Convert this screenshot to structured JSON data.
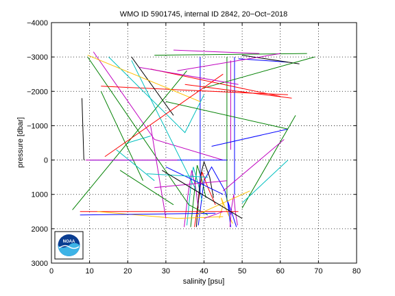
{
  "chart_data": {
    "type": "line",
    "title": "WMO ID 5901745, internal ID 2842, 20−Oct−2018",
    "xlabel": "salinity [psu]",
    "ylabel": "pressure [dbar]",
    "xlim": [
      0,
      80
    ],
    "ylim": [
      -4000,
      3000
    ],
    "y_inverted": true,
    "grid": true,
    "x_ticks": [
      0,
      10,
      20,
      30,
      40,
      50,
      60,
      70,
      80
    ],
    "y_ticks": [
      -4000,
      -3000,
      -2000,
      -1000,
      0,
      1000,
      2000,
      3000
    ],
    "x_tick_labels": [
      "0",
      "10",
      "20",
      "30",
      "40",
      "50",
      "60",
      "70",
      "80"
    ],
    "y_tick_labels": [
      "−4000",
      "−3000",
      "−2000",
      "−1000",
      "0",
      "1000",
      "2000",
      "3000"
    ],
    "series": [
      {
        "color": "#0000ff",
        "points": [
          [
            38.5,
            1900
          ],
          [
            40,
            600
          ],
          [
            42,
            200
          ],
          [
            45.5,
            900
          ],
          [
            47,
            1600
          ]
        ]
      },
      {
        "color": "#ff0000",
        "points": [
          [
            37.5,
            1950
          ],
          [
            38.8,
            1000
          ],
          [
            39.5,
            350
          ],
          [
            41,
            800
          ],
          [
            43,
            1300
          ]
        ]
      },
      {
        "color": "#008000",
        "points": [
          [
            36.5,
            1950
          ],
          [
            37.5,
            900
          ],
          [
            38.2,
            150
          ],
          [
            39.5,
            600
          ],
          [
            40.5,
            1100
          ]
        ]
      },
      {
        "color": "#00bfbf",
        "points": [
          [
            35.5,
            1900
          ],
          [
            36.5,
            800
          ],
          [
            37.2,
            200
          ],
          [
            38.5,
            700
          ],
          [
            39.5,
            1200
          ]
        ]
      },
      {
        "color": "#bf00bf",
        "points": [
          [
            34.8,
            1950
          ],
          [
            35.8,
            1000
          ],
          [
            36.8,
            300
          ],
          [
            37.8,
            800
          ],
          [
            38.5,
            1400
          ]
        ]
      },
      {
        "color": "#000000",
        "points": [
          [
            38,
            1950
          ],
          [
            39,
            500
          ],
          [
            40,
            50
          ],
          [
            41.5,
            500
          ],
          [
            42.5,
            1100
          ]
        ]
      },
      {
        "color": "#ffbf00",
        "points": [
          [
            44,
            1700
          ],
          [
            45,
            1300
          ],
          [
            44.5,
            1100
          ],
          [
            46,
            1500
          ],
          [
            47.5,
            1850
          ]
        ]
      },
      {
        "color": "#0000ff",
        "points": [
          [
            47,
            1950
          ],
          [
            46.5,
            1500
          ],
          [
            46.2,
            1200
          ],
          [
            47.5,
            1600
          ],
          [
            48.5,
            1950
          ]
        ]
      },
      {
        "color": "#bf00bf",
        "points": [
          [
            46.8,
            1950
          ],
          [
            47.2,
            1400
          ],
          [
            47.8,
            1000
          ],
          [
            48.2,
            1500
          ],
          [
            48.8,
            1900
          ]
        ]
      },
      {
        "color": "#0000ff",
        "points": [
          [
            39,
            -3000
          ],
          [
            39,
            1000
          ]
        ]
      },
      {
        "color": "#008000",
        "points": [
          [
            46,
            -3000
          ],
          [
            46,
            1200
          ]
        ]
      },
      {
        "color": "#0000ff",
        "points": [
          [
            48,
            -3000
          ],
          [
            48,
            1000
          ]
        ]
      },
      {
        "color": "#bf00bf",
        "points": [
          [
            47,
            -2900
          ],
          [
            47,
            -300
          ]
        ]
      },
      {
        "color": "#008000",
        "points": [
          [
            9.5,
            -3000
          ],
          [
            36,
            1300
          ],
          [
            41,
            1600
          ]
        ]
      },
      {
        "color": "#bf00bf",
        "points": [
          [
            11,
            -3150
          ],
          [
            27,
            -600
          ],
          [
            45,
            0
          ]
        ]
      },
      {
        "color": "#ff0000",
        "points": [
          [
            26,
            -2650
          ],
          [
            60,
            -1850
          ]
        ]
      },
      {
        "color": "#ff0000",
        "points": [
          [
            13,
            -2150
          ],
          [
            62,
            -1900
          ]
        ]
      },
      {
        "color": "#000000",
        "points": [
          [
            21,
            -3000
          ],
          [
            32,
            -1300
          ]
        ]
      },
      {
        "color": "#008000",
        "points": [
          [
            5.5,
            1450
          ],
          [
            35.5,
            -2600
          ]
        ]
      },
      {
        "color": "#ff0000",
        "points": [
          [
            7.5,
            1500
          ],
          [
            49,
            1500
          ]
        ]
      },
      {
        "color": "#ffbf00",
        "points": [
          [
            12,
            1500
          ],
          [
            33,
            1700
          ],
          [
            45,
            1650
          ]
        ]
      },
      {
        "color": "#0000ff",
        "points": [
          [
            7.5,
            1600
          ],
          [
            43,
            1550
          ]
        ]
      },
      {
        "color": "#00bfbf",
        "points": [
          [
            15,
            -3000
          ],
          [
            35,
            -800
          ],
          [
            40,
            -1900
          ]
        ]
      },
      {
        "color": "#008000",
        "points": [
          [
            27,
            -3050
          ],
          [
            67,
            -3100
          ]
        ]
      },
      {
        "color": "#bf00bf",
        "points": [
          [
            32,
            -3200
          ],
          [
            54.5,
            -3100
          ]
        ]
      },
      {
        "color": "#0000ff",
        "points": [
          [
            49,
            -2950
          ],
          [
            62,
            -2850
          ]
        ]
      },
      {
        "color": "#000000",
        "points": [
          [
            50,
            -3050
          ],
          [
            65,
            -2800
          ]
        ]
      },
      {
        "color": "#008000",
        "points": [
          [
            40,
            -2100
          ],
          [
            69,
            -3000
          ]
        ]
      },
      {
        "color": "#bf00bf",
        "points": [
          [
            33,
            -2600
          ],
          [
            60,
            -3100
          ]
        ]
      },
      {
        "color": "#008000",
        "points": [
          [
            30,
            -1700
          ],
          [
            62,
            -900
          ]
        ]
      },
      {
        "color": "#0000ff",
        "points": [
          [
            42,
            -400
          ],
          [
            62,
            -900
          ]
        ]
      },
      {
        "color": "#008000",
        "points": [
          [
            50,
            1400
          ],
          [
            64,
            -1300
          ]
        ]
      },
      {
        "color": "#00bfbf",
        "points": [
          [
            50,
            1250
          ],
          [
            62,
            0
          ]
        ]
      },
      {
        "color": "#bf00bf",
        "points": [
          [
            45,
            900
          ],
          [
            61,
            -600
          ]
        ]
      },
      {
        "color": "#ffbf00",
        "points": [
          [
            38,
            1600
          ],
          [
            52,
            900
          ]
        ]
      },
      {
        "color": "#00bfbf",
        "points": [
          [
            21,
            -2900
          ],
          [
            38,
            900
          ]
        ]
      },
      {
        "color": "#008000",
        "points": [
          [
            13,
            -2000
          ],
          [
            24,
            600
          ]
        ]
      },
      {
        "color": "#bf00bf",
        "points": [
          [
            26,
            -1000
          ],
          [
            30,
            1700
          ]
        ]
      },
      {
        "color": "#00bfbf",
        "points": [
          [
            17,
            -300
          ],
          [
            27,
            600
          ]
        ]
      },
      {
        "color": "#008000",
        "points": [
          [
            18,
            300
          ],
          [
            32,
            1300
          ]
        ]
      },
      {
        "color": "#ffbf00",
        "points": [
          [
            9.5,
            -3050
          ],
          [
            39,
            -1700
          ]
        ]
      },
      {
        "color": "#000000",
        "points": [
          [
            8,
            -1800
          ],
          [
            8.5,
            0
          ]
        ]
      },
      {
        "color": "#0000ff",
        "points": [
          [
            10,
            0
          ],
          [
            46,
            0
          ]
        ]
      },
      {
        "color": "#bf00bf",
        "points": [
          [
            9,
            0
          ],
          [
            33,
            0
          ]
        ]
      },
      {
        "color": "#ff0000",
        "points": [
          [
            14,
            -100
          ],
          [
            45,
            -2500
          ]
        ]
      },
      {
        "color": "#bf00bf",
        "points": [
          [
            23,
            -2700
          ],
          [
            49,
            -2200
          ]
        ]
      },
      {
        "color": "#ff0000",
        "points": [
          [
            35,
            -2200
          ],
          [
            63,
            -1800
          ]
        ]
      },
      {
        "color": "#00bfbf",
        "points": [
          [
            20,
            -500
          ],
          [
            26,
            -700
          ]
        ]
      },
      {
        "color": "#0000ff",
        "points": [
          [
            30,
            200
          ],
          [
            45,
            1000
          ]
        ]
      },
      {
        "color": "#00bfbf",
        "points": [
          [
            25,
            400
          ],
          [
            41,
            500
          ]
        ]
      },
      {
        "color": "#bf00bf",
        "points": [
          [
            27,
            800
          ],
          [
            46,
            600
          ]
        ]
      },
      {
        "color": "#000000",
        "points": [
          [
            29,
            300
          ],
          [
            50,
            1700
          ]
        ]
      },
      {
        "color": "#bf00bf",
        "points": [
          [
            40,
            1700
          ],
          [
            45,
            1500
          ]
        ]
      }
    ]
  }
}
